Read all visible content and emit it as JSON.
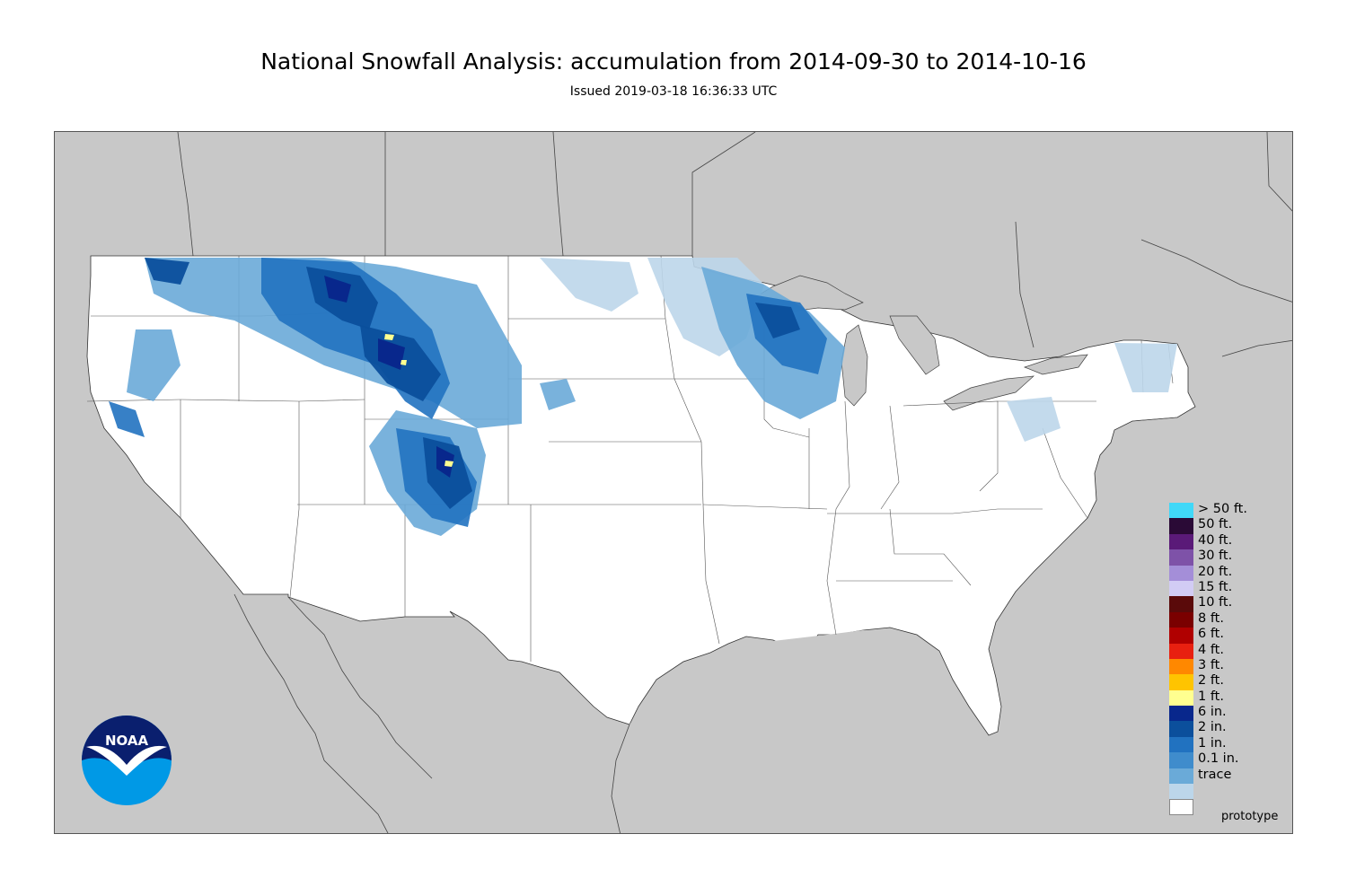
{
  "title": "National Snowfall Analysis: accumulation from 2014-09-30 to 2014-10-16",
  "subtitle": "Issued 2019-03-18 16:36:33 UTC",
  "watermark": "prototype",
  "logo": {
    "text": "NOAA",
    "icon": "noaa-logo"
  },
  "colors": {
    "background": "#c8c8c8",
    "land": "#ffffff",
    "water": "#c8c8c8",
    "border": "#555555"
  },
  "legend": [
    {
      "label": "> 50 ft.",
      "color": "#40d8f8"
    },
    {
      "label": "50 ft.",
      "color": "#2a0a36"
    },
    {
      "label": "40 ft.",
      "color": "#5a1a78"
    },
    {
      "label": "30 ft.",
      "color": "#7e52a8"
    },
    {
      "label": "20 ft.",
      "color": "#a48ed8"
    },
    {
      "label": "15 ft.",
      "color": "#d2ccf4"
    },
    {
      "label": "10 ft.",
      "color": "#5a0a0a"
    },
    {
      "label": "8 ft.",
      "color": "#7a0000"
    },
    {
      "label": "6 ft.",
      "color": "#b00000"
    },
    {
      "label": "4 ft.",
      "color": "#e82010"
    },
    {
      "label": "3 ft.",
      "color": "#ff8800"
    },
    {
      "label": "2 ft.",
      "color": "#ffc400"
    },
    {
      "label": "1 ft.",
      "color": "#ffff90"
    },
    {
      "label": "6 in.",
      "color": "#08278c"
    },
    {
      "label": "2 in.",
      "color": "#0b4f9c"
    },
    {
      "label": "1 in.",
      "color": "#2172c0"
    },
    {
      "label": "0.1 in.",
      "color": "#3f8ccc"
    },
    {
      "label": "trace",
      "color": "#6aaad8"
    },
    {
      "label": "",
      "color": "#bcd6ea"
    }
  ]
}
